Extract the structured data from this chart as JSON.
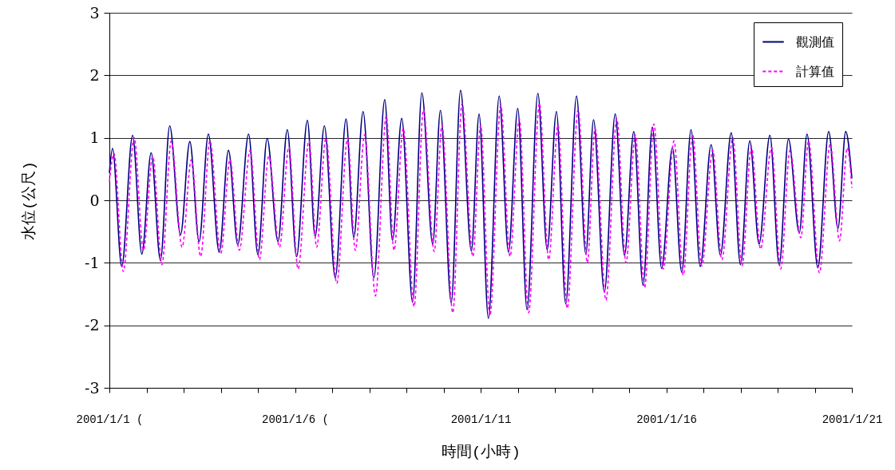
{
  "chart_data": {
    "type": "line",
    "xlabel": "時間(小時)",
    "ylabel": "水位(公尺)",
    "xlim": [
      "2001-01-01T00:00",
      "2001-01-21T00:00"
    ],
    "ylim": [
      -3,
      3
    ],
    "yticks": [
      -3,
      -2,
      -1,
      0,
      1,
      2,
      3
    ],
    "xticks": [
      {
        "value": "2001-01-01",
        "label": "2001/1/1 ("
      },
      {
        "value": "2001-01-02",
        "label": null
      },
      {
        "value": "2001-01-03",
        "label": null
      },
      {
        "value": "2001-01-04",
        "label": null
      },
      {
        "value": "2001-01-05",
        "label": null
      },
      {
        "value": "2001-01-06",
        "label": "2001/1/6 ("
      },
      {
        "value": "2001-01-07",
        "label": null
      },
      {
        "value": "2001-01-08",
        "label": null
      },
      {
        "value": "2001-01-09",
        "label": null
      },
      {
        "value": "2001-01-10",
        "label": null
      },
      {
        "value": "2001-01-11",
        "label": "2001/1/11"
      },
      {
        "value": "2001-01-12",
        "label": null
      },
      {
        "value": "2001-01-13",
        "label": null
      },
      {
        "value": "2001-01-14",
        "label": null
      },
      {
        "value": "2001-01-15",
        "label": null
      },
      {
        "value": "2001-01-16",
        "label": "2001/1/16"
      },
      {
        "value": "2001-01-17",
        "label": null
      },
      {
        "value": "2001-01-18",
        "label": null
      },
      {
        "value": "2001-01-19",
        "label": null
      },
      {
        "value": "2001-01-20",
        "label": null
      },
      {
        "value": "2001-01-21",
        "label": "2001/1/21"
      }
    ],
    "grid": "y",
    "legend": "top right",
    "marker": "none",
    "series": [
      {
        "name": "觀測值",
        "color": "#000080",
        "line_style": "solid",
        "x": [
          "2001-01-01T00:00",
          "2001-01-01T02:00",
          "2001-01-01T08:00",
          "2001-01-01T15:00",
          "2001-01-01T21:00",
          "2001-01-02T03:00",
          "2001-01-02T09:00",
          "2001-01-02T15:00",
          "2001-01-02T22:00",
          "2001-01-03T04:00",
          "2001-01-03T10:00",
          "2001-01-03T16:00",
          "2001-01-03T23:00",
          "2001-01-04T05:00",
          "2001-01-04T11:00",
          "2001-01-04T18:00",
          "2001-01-05T00:00",
          "2001-01-05T06:00",
          "2001-01-05T13:00",
          "2001-01-05T19:00",
          "2001-01-06T01:00",
          "2001-01-06T08:00",
          "2001-01-06T13:00",
          "2001-01-06T19:00",
          "2001-01-07T02:00",
          "2001-01-07T09:00",
          "2001-01-07T14:00",
          "2001-01-07T20:00",
          "2001-01-08T03:00",
          "2001-01-08T10:00",
          "2001-01-08T15:00",
          "2001-01-08T21:00",
          "2001-01-09T04:00",
          "2001-01-09T10:00",
          "2001-01-09T17:00",
          "2001-01-09T22:00",
          "2001-01-10T05:00",
          "2001-01-10T11:00",
          "2001-01-10T18:00",
          "2001-01-10T23:00",
          "2001-01-11T05:00",
          "2001-01-11T12:00",
          "2001-01-11T18:00",
          "2001-01-12T00:00",
          "2001-01-12T06:00",
          "2001-01-12T13:00",
          "2001-01-12T19:00",
          "2001-01-13T01:00",
          "2001-01-13T07:00",
          "2001-01-13T14:00",
          "2001-01-13T20:00",
          "2001-01-14T01:00",
          "2001-01-14T08:00",
          "2001-01-14T15:00",
          "2001-01-14T21:00",
          "2001-01-15T03:00",
          "2001-01-15T09:00",
          "2001-01-15T15:00",
          "2001-01-15T21:00",
          "2001-01-16T04:00",
          "2001-01-16T10:00",
          "2001-01-16T16:00",
          "2001-01-16T22:00",
          "2001-01-17T05:00",
          "2001-01-17T11:00",
          "2001-01-17T18:00",
          "2001-01-18T00:00",
          "2001-01-18T06:00",
          "2001-01-18T12:00",
          "2001-01-18T19:00",
          "2001-01-19T01:00",
          "2001-01-19T07:00",
          "2001-01-19T14:00",
          "2001-01-19T19:00",
          "2001-01-20T02:00",
          "2001-01-20T09:00",
          "2001-01-20T15:00",
          "2001-01-20T20:00",
          "2001-01-21T00:00"
        ],
        "values": [
          0.44,
          0.83,
          -1.06,
          1.04,
          -0.86,
          0.76,
          -0.96,
          1.19,
          -0.55,
          0.94,
          -0.66,
          1.06,
          -0.83,
          0.8,
          -0.71,
          1.06,
          -0.87,
          0.99,
          -0.66,
          1.13,
          -0.9,
          1.28,
          -0.58,
          1.19,
          -1.24,
          1.3,
          -0.59,
          1.42,
          -1.24,
          1.61,
          -0.64,
          1.31,
          -1.63,
          1.72,
          -0.7,
          1.44,
          -1.64,
          1.76,
          -0.81,
          1.38,
          -1.89,
          1.67,
          -0.83,
          1.47,
          -1.75,
          1.71,
          -0.79,
          1.42,
          -1.66,
          1.67,
          -0.86,
          1.29,
          -1.47,
          1.38,
          -0.88,
          1.1,
          -1.36,
          1.17,
          -1.09,
          0.84,
          -1.15,
          1.13,
          -1.06,
          0.89,
          -0.88,
          1.08,
          -1.03,
          0.95,
          -0.7,
          1.04,
          -1.03,
          0.98,
          -0.52,
          1.06,
          -1.08,
          1.1,
          -0.45,
          1.1,
          0.35
        ]
      },
      {
        "name": "計算值",
        "color": "#ff00ff",
        "line_style": "dashed",
        "x": [
          "2001-01-01T00:00",
          "2001-01-01T03:00",
          "2001-01-01T09:00",
          "2001-01-01T16:00",
          "2001-01-01T22:00",
          "2001-01-02T04:00",
          "2001-01-02T10:00",
          "2001-01-02T16:00",
          "2001-01-02T23:00",
          "2001-01-03T05:00",
          "2001-01-03T11:00",
          "2001-01-03T17:00",
          "2001-01-04T00:00",
          "2001-01-04T06:00",
          "2001-01-04T12:00",
          "2001-01-04T19:00",
          "2001-01-05T01:00",
          "2001-01-05T07:00",
          "2001-01-05T14:00",
          "2001-01-05T20:00",
          "2001-01-06T02:00",
          "2001-01-06T09:00",
          "2001-01-06T14:00",
          "2001-01-06T20:00",
          "2001-01-07T03:00",
          "2001-01-07T10:00",
          "2001-01-07T15:00",
          "2001-01-07T21:00",
          "2001-01-08T04:00",
          "2001-01-08T11:00",
          "2001-01-08T16:00",
          "2001-01-08T22:00",
          "2001-01-09T05:00",
          "2001-01-09T11:00",
          "2001-01-09T18:00",
          "2001-01-09T23:00",
          "2001-01-10T06:00",
          "2001-01-10T12:00",
          "2001-01-10T19:00",
          "2001-01-11T00:00",
          "2001-01-11T06:00",
          "2001-01-11T13:00",
          "2001-01-11T19:00",
          "2001-01-12T01:00",
          "2001-01-12T07:00",
          "2001-01-12T14:00",
          "2001-01-12T20:00",
          "2001-01-13T02:00",
          "2001-01-13T08:00",
          "2001-01-13T15:00",
          "2001-01-13T21:00",
          "2001-01-14T02:00",
          "2001-01-14T09:00",
          "2001-01-14T16:00",
          "2001-01-14T22:00",
          "2001-01-15T04:00",
          "2001-01-15T10:00",
          "2001-01-15T16:00",
          "2001-01-15T22:00",
          "2001-01-16T05:00",
          "2001-01-16T11:00",
          "2001-01-16T17:00",
          "2001-01-16T23:00",
          "2001-01-17T06:00",
          "2001-01-17T12:00",
          "2001-01-17T19:00",
          "2001-01-18T01:00",
          "2001-01-18T07:00",
          "2001-01-18T13:00",
          "2001-01-18T20:00",
          "2001-01-19T02:00",
          "2001-01-19T08:00",
          "2001-01-19T15:00",
          "2001-01-19T20:00",
          "2001-01-20T03:00",
          "2001-01-20T10:00",
          "2001-01-20T16:00",
          "2001-01-20T21:00",
          "2001-01-21T00:00"
        ],
        "values": [
          0.3,
          0.75,
          -1.14,
          1.0,
          -0.8,
          0.7,
          -1.03,
          0.95,
          -0.75,
          0.65,
          -0.9,
          0.95,
          -0.85,
          0.65,
          -0.8,
          0.8,
          -0.95,
          0.7,
          -0.75,
          0.85,
          -1.1,
          0.95,
          -0.75,
          1.0,
          -1.33,
          1.0,
          -0.8,
          1.05,
          -1.53,
          1.35,
          -0.8,
          1.15,
          -1.7,
          1.45,
          -0.82,
          1.2,
          -1.8,
          1.55,
          -0.9,
          1.2,
          -1.85,
          1.52,
          -0.9,
          1.3,
          -1.8,
          1.55,
          -0.95,
          1.2,
          -1.73,
          1.45,
          -1.0,
          1.15,
          -1.6,
          1.3,
          -1.0,
          1.05,
          -1.4,
          1.22,
          -1.1,
          0.95,
          -1.2,
          1.05,
          -1.05,
          0.8,
          -0.95,
          1.0,
          -1.05,
          0.85,
          -0.78,
          0.85,
          -1.1,
          0.8,
          -0.6,
          0.95,
          -1.16,
          0.9,
          -0.65,
          0.84,
          0.2
        ]
      }
    ]
  }
}
